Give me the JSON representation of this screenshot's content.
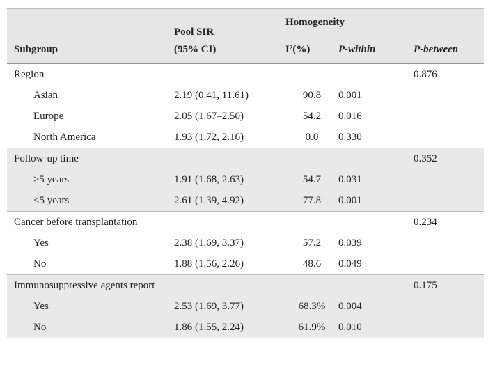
{
  "header": {
    "subgroup": "Subgroup",
    "pool_sir": "Pool SIR",
    "pool_sir_ci": "(95% CI)",
    "homogeneity": "Homogeneity",
    "i2": "I²(%)",
    "p_within": "P-within",
    "p_between": "P-between"
  },
  "groups": [
    {
      "label": "Region",
      "p_between": "0.876",
      "rows": [
        {
          "label": "Asian",
          "sir": "2.19 (0.41, 11.61)",
          "i2": "90.8",
          "p_within": "0.001"
        },
        {
          "label": "Europe",
          "sir": "2.05 (1.67–2.50)",
          "i2": "54.2",
          "p_within": "0.016"
        },
        {
          "label": "North America",
          "sir": "1.93 (1.72, 2.16)",
          "i2": "0.0",
          "p_within": "0.330"
        }
      ]
    },
    {
      "label": "Follow-up time",
      "p_between": "0.352",
      "rows": [
        {
          "label": "≥5 years",
          "sir": "1.91 (1.68, 2.63)",
          "i2": "54.7",
          "p_within": "0.031"
        },
        {
          "label": "<5 years",
          "sir": "2.61 (1.39, 4.92)",
          "i2": "77.8",
          "p_within": "0.001"
        }
      ]
    },
    {
      "label": "Cancer before transplantation",
      "p_between": "0.234",
      "rows": [
        {
          "label": "Yes",
          "sir": "2.38 (1.69, 3.37)",
          "i2": "57.2",
          "p_within": "0.039"
        },
        {
          "label": "No",
          "sir": "1.88 (1.56, 2.26)",
          "i2": "48.6",
          "p_within": "0.049"
        }
      ]
    },
    {
      "label": "Immunosuppressive agents report",
      "p_between": "0.175",
      "rows": [
        {
          "label": "Yes",
          "sir": "2.53 (1.69, 3.77)",
          "i2": "68.3%",
          "p_within": "0.004"
        },
        {
          "label": "No",
          "sir": "1.86 (1.55, 2.24)",
          "i2": "61.9%",
          "p_within": "0.010"
        }
      ]
    }
  ]
}
